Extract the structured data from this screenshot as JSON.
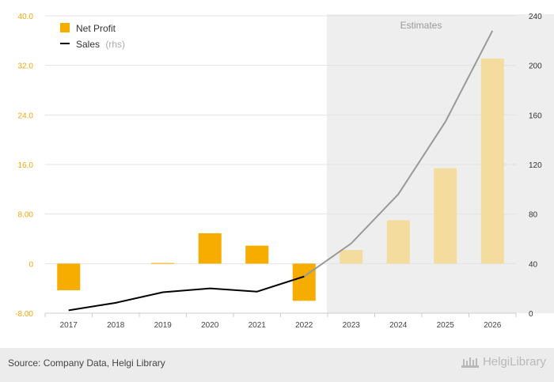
{
  "chart_data": {
    "type": "bar+line",
    "categories": [
      "2017",
      "2018",
      "2019",
      "2020",
      "2021",
      "2022",
      "2023",
      "2024",
      "2025",
      "2026"
    ],
    "series": [
      {
        "name": "Net Profit",
        "type": "bar",
        "axis": "left",
        "values": [
          -4.3,
          0.0,
          0.1,
          4.9,
          2.9,
          -6.0,
          2.2,
          7.0,
          15.4,
          33.1
        ],
        "color": "#f7ac00",
        "estimate_color": "#f4dc9f"
      },
      {
        "name": "Sales",
        "name_suffix": "(rhs)",
        "type": "line",
        "axis": "right",
        "values": [
          2.3,
          8.4,
          16.9,
          20.0,
          17.4,
          29.6,
          56.3,
          96.0,
          154.5,
          228.0
        ],
        "color": "#000000",
        "estimate_color": "#999999"
      }
    ],
    "y_left": {
      "min": -8,
      "max": 40,
      "ticks": [
        "-8.00",
        "0",
        "8.00",
        "16.0",
        "24.0",
        "32.0",
        "40.0"
      ],
      "color": "#f4a60b"
    },
    "y_right": {
      "min": 0,
      "max": 240,
      "ticks": [
        "0",
        "40",
        "80",
        "120",
        "160",
        "200",
        "240"
      ]
    },
    "estimates": {
      "label": "Estimates",
      "from_index": 6,
      "shade": "#eeeeee"
    },
    "grid": true,
    "legend": "top-left"
  },
  "footer": {
    "source": "Source: Company Data, Helgi Library",
    "logo": "HelgiLibrary"
  }
}
